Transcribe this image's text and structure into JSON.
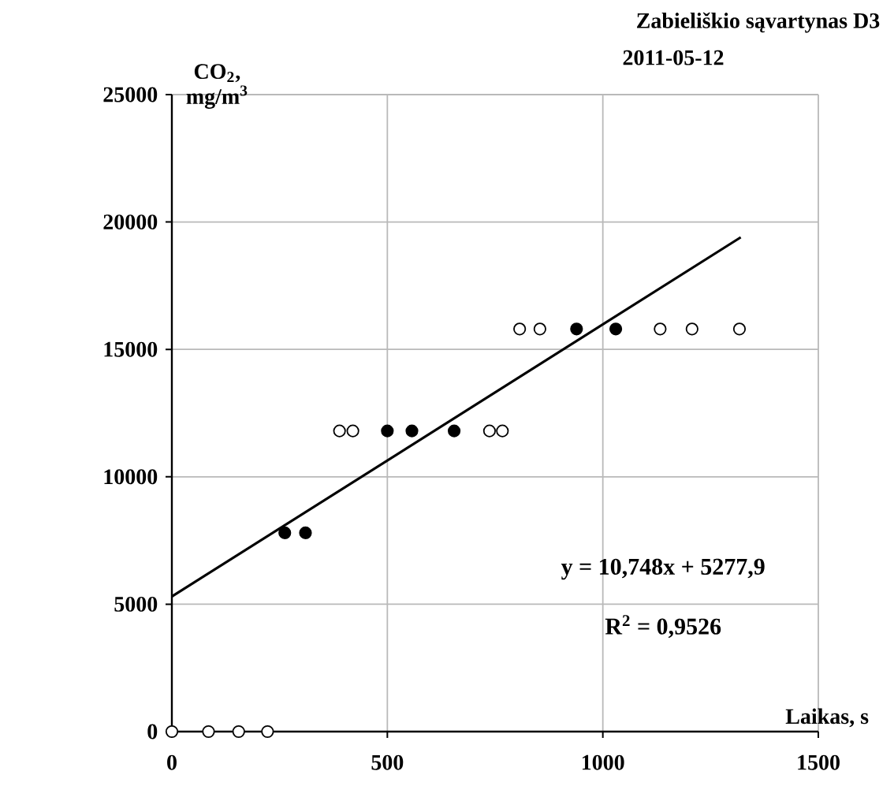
{
  "chart_data": {
    "type": "scatter",
    "title": "Zabieliškio sąvartynas   D3",
    "subtitle": "2011-05-12",
    "ylabel": "CO$_{2}$, mg/m$^{3}$",
    "xlabel": "Laikas, s",
    "annotations": [
      "y = 10,748x + 5277,9",
      "R$^{2}$ = 0,9526"
    ],
    "xlim": [
      0,
      1500
    ],
    "xticks": [
      0,
      500,
      1000,
      1500
    ],
    "ylim": [
      0,
      25000
    ],
    "yticks": [
      0,
      5000,
      10000,
      15000,
      20000,
      25000
    ],
    "grid": true,
    "marker": "circle",
    "series": [
      {
        "color": "#ffffff",
        "x": [
          0,
          85,
          155,
          222,
          389,
          420,
          737,
          767,
          807,
          854,
          1133,
          1207,
          1317
        ],
        "values": [
          0,
          0,
          0,
          0,
          11800,
          11800,
          11800,
          11800,
          15800,
          15800,
          15800,
          15800,
          15800
        ]
      },
      {
        "color": "#000000",
        "x": [
          262,
          310,
          500,
          557,
          655,
          939,
          1030
        ],
        "values": [
          7800,
          7800,
          11800,
          11800,
          11800,
          15800,
          15800
        ]
      },
      {
        "type": "line",
        "color": "#000000",
        "marker": "none",
        "x": [
          0,
          1320
        ],
        "values": [
          5300,
          19400
        ]
      }
    ]
  }
}
